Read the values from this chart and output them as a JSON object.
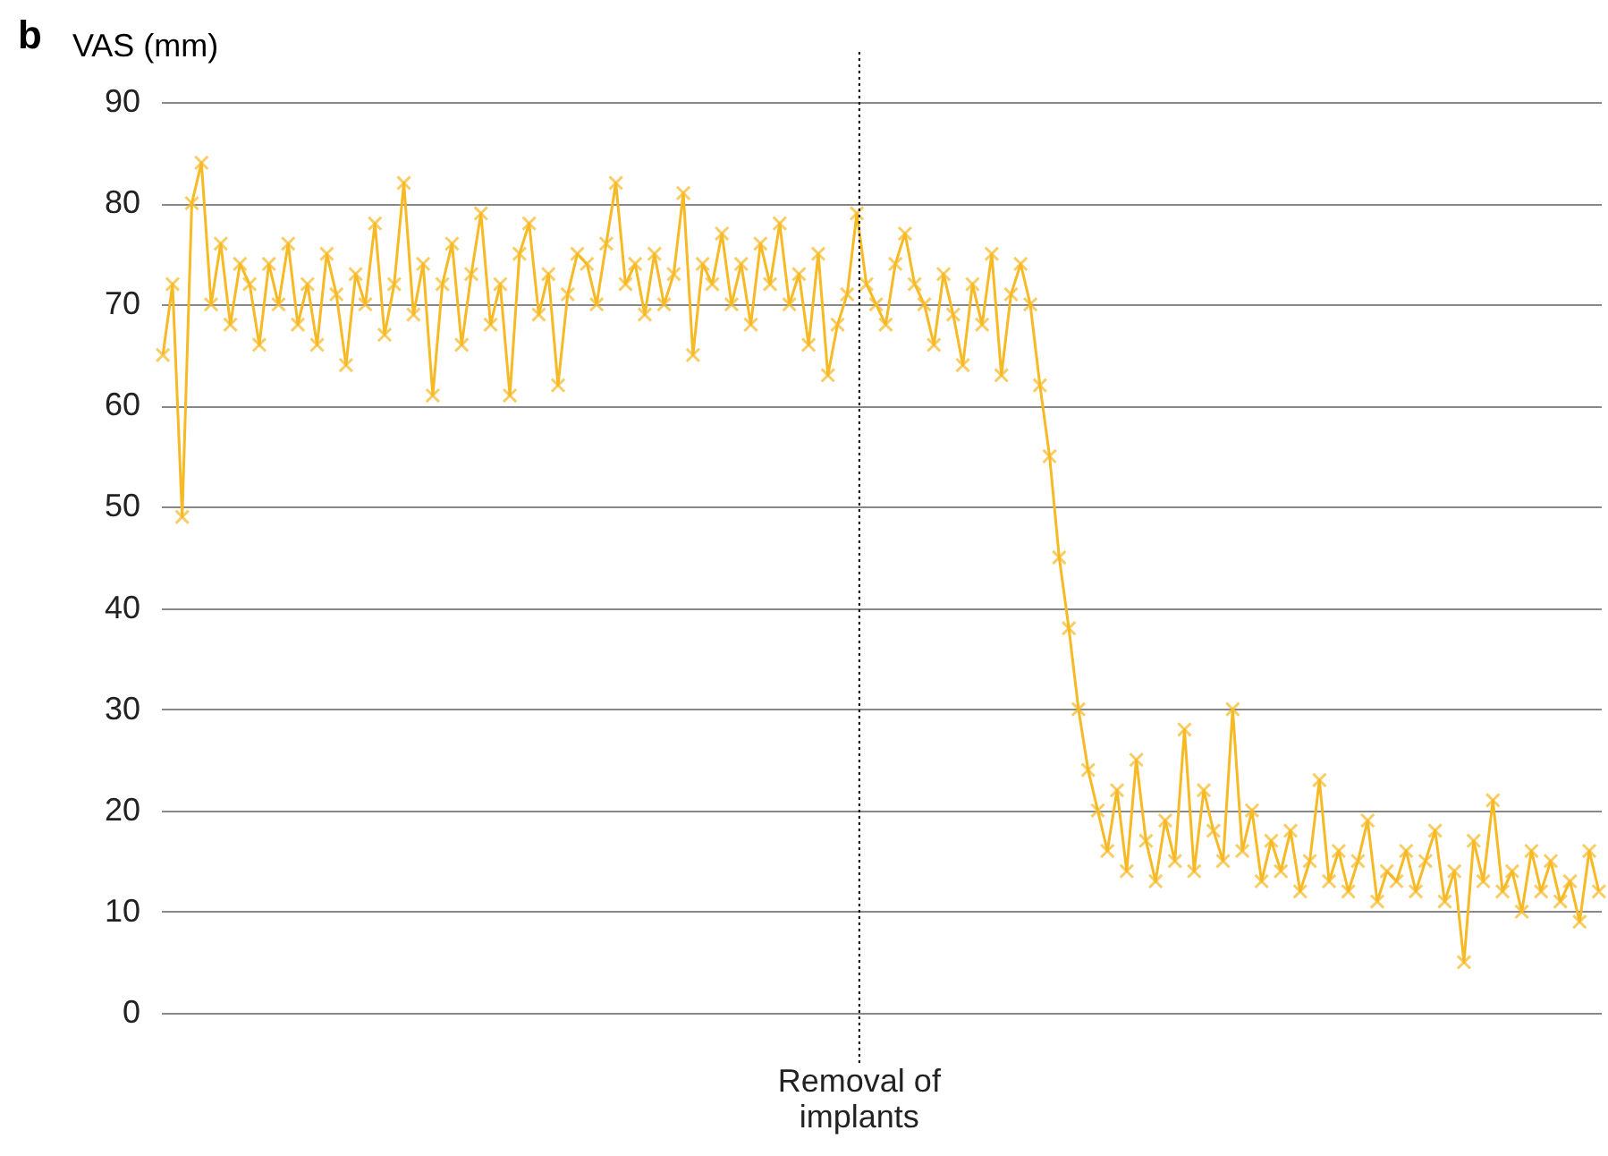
{
  "chart_data": {
    "type": "line",
    "ylabel": "VAS (mm)",
    "annotations": [
      "b",
      "Removal of implants"
    ],
    "categories": [
      null,
      null,
      null,
      null,
      null,
      null,
      null,
      null,
      null,
      null,
      null,
      null,
      null,
      null,
      null,
      null,
      null,
      null,
      null,
      null,
      null,
      null,
      null,
      null,
      null,
      null,
      null,
      null,
      null,
      null,
      null,
      null,
      null,
      null,
      null,
      null,
      null,
      null,
      null,
      null,
      null,
      null,
      null,
      null,
      null,
      null,
      null,
      null,
      null,
      null,
      null,
      null,
      null,
      null,
      null,
      null,
      null,
      null,
      null,
      null,
      null,
      null,
      null,
      null,
      null,
      null,
      null,
      null,
      null,
      null,
      null,
      null,
      null,
      null,
      null,
      null,
      null,
      null,
      null,
      null,
      null,
      null,
      null,
      null,
      null,
      null,
      null,
      null,
      null,
      null,
      null,
      null,
      null,
      null,
      null,
      null,
      null,
      null,
      null,
      null,
      null,
      null,
      null,
      null,
      null,
      null,
      null,
      null,
      null,
      null,
      null,
      null,
      null,
      null,
      null,
      null,
      null,
      null,
      null,
      null,
      null,
      null,
      null,
      null,
      null,
      null,
      null,
      null,
      null,
      null,
      null,
      null,
      null,
      null,
      null,
      null,
      null,
      null,
      null,
      null,
      null,
      null,
      null,
      null,
      null,
      null,
      null,
      null,
      null,
      null
    ],
    "series": [
      {
        "color": "#f7b924",
        "values": [
          65,
          72,
          49,
          80,
          84,
          70,
          76,
          68,
          74,
          72,
          66,
          74,
          70,
          76,
          68,
          72,
          66,
          75,
          71,
          64,
          73,
          70,
          78,
          67,
          72,
          82,
          69,
          74,
          61,
          72,
          76,
          66,
          73,
          79,
          68,
          72,
          61,
          75,
          78,
          69,
          73,
          62,
          71,
          75,
          74,
          70,
          76,
          82,
          72,
          74,
          69,
          75,
          70,
          73,
          81,
          65,
          74,
          72,
          77,
          70,
          74,
          68,
          76,
          72,
          78,
          70,
          73,
          66,
          75,
          63,
          68,
          71,
          79,
          72,
          70,
          68,
          74,
          77,
          72,
          70,
          66,
          73,
          69,
          64,
          72,
          68,
          75,
          63,
          71,
          74,
          70,
          62,
          55,
          45,
          38,
          30,
          24,
          20,
          16,
          22,
          14,
          25,
          17,
          13,
          19,
          15,
          28,
          14,
          22,
          18,
          15,
          30,
          16,
          20,
          13,
          17,
          14,
          18,
          12,
          15,
          23,
          13,
          16,
          12,
          15,
          19,
          11,
          14,
          13,
          16,
          12,
          15,
          18,
          11,
          14,
          5,
          17,
          13,
          21,
          12,
          14,
          10,
          16,
          12,
          15,
          11,
          13,
          9,
          16,
          12
        ]
      }
    ],
    "ylim": [
      0,
      90
    ],
    "yticks": [
      0,
      10,
      20,
      30,
      40,
      50,
      60,
      70,
      80,
      90
    ],
    "grid": "y",
    "marker": "cross"
  }
}
